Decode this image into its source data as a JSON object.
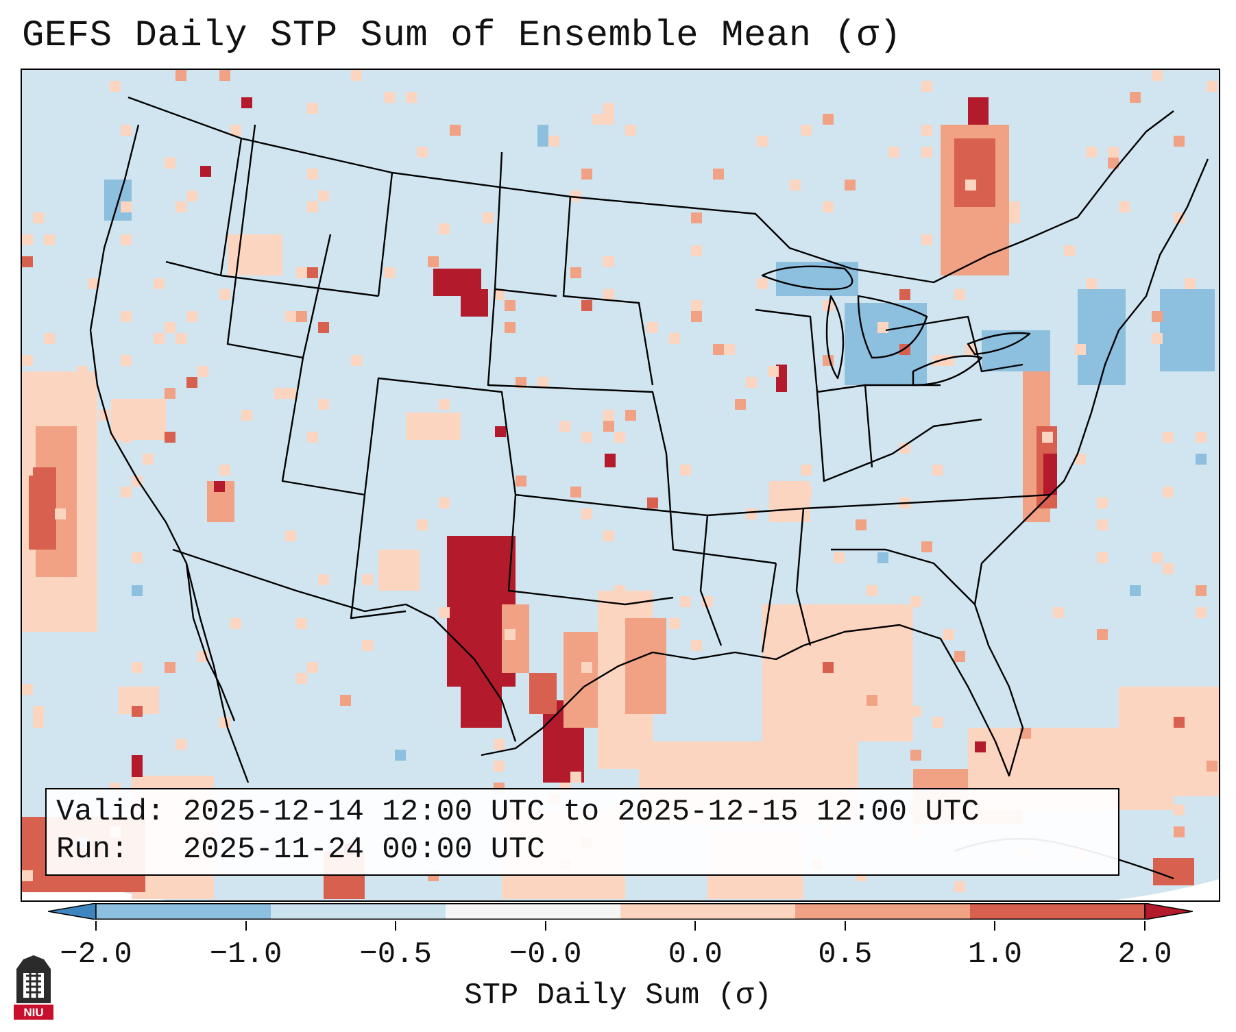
{
  "title": "GEFS Daily STP Sum of Ensemble Mean (σ)",
  "info": {
    "valid_label": "Valid:",
    "valid_value": "2025-12-14 12:00 UTC to 2025-12-15 12:00 UTC",
    "run_label": "Run:",
    "run_value": "2025-11-24 00:00 UTC"
  },
  "colorbar": {
    "label": "STP Daily Sum (σ)",
    "ticks": [
      "−2.0",
      "−1.0",
      "−0.5",
      "−0.0",
      "0.0",
      "0.5",
      "1.0",
      "2.0"
    ],
    "colors": [
      "#3f86bf",
      "#8dbfde",
      "#cbe2ef",
      "#f6f6f6",
      "#fcd5c1",
      "#f2a284",
      "#d8604e",
      "#b31a2b"
    ],
    "extend": "both"
  },
  "map": {
    "background_color": "#d1e5f0",
    "region": "Continental United States",
    "projection": "Lambert Conformal"
  },
  "logo": {
    "name": "niu-logo",
    "text": "NIU"
  }
}
